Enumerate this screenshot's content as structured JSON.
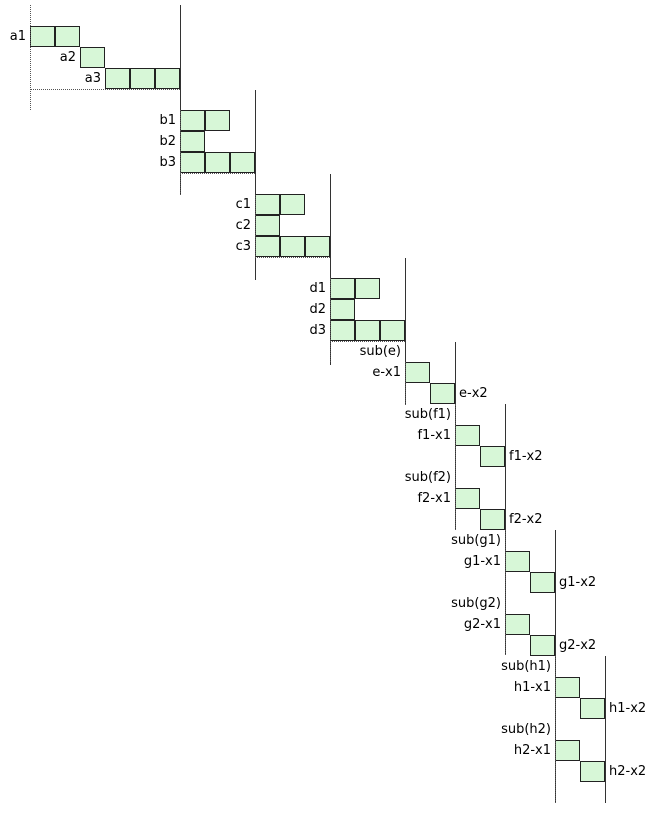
{
  "rows": [
    {
      "label": "a1",
      "cells": 2,
      "group": "a"
    },
    {
      "label": "a2",
      "cells": 1,
      "group": "a"
    },
    {
      "label": "a3",
      "cells": 3,
      "group": "a"
    },
    {
      "label": "b1",
      "cells": 2,
      "group": "b"
    },
    {
      "label": "b2",
      "cells": 1,
      "group": "b"
    },
    {
      "label": "b3",
      "cells": 3,
      "group": "b"
    },
    {
      "label": "c1",
      "cells": 2,
      "group": "c"
    },
    {
      "label": "c2",
      "cells": 1,
      "group": "c"
    },
    {
      "label": "c3",
      "cells": 3,
      "group": "c"
    },
    {
      "label": "d1",
      "cells": 2,
      "group": "d"
    },
    {
      "label": "d2",
      "cells": 1,
      "group": "d"
    },
    {
      "label": "d3",
      "cells": 3,
      "group": "d"
    },
    {
      "label": "sub(e)",
      "cells": 0,
      "group": "e"
    },
    {
      "label": "e-x1",
      "cells": 1,
      "group": "e"
    },
    {
      "label": "e-x2",
      "cells": 1,
      "group": "e"
    },
    {
      "label": "sub(f1)",
      "cells": 0,
      "group": "f"
    },
    {
      "label": "f1-x1",
      "cells": 1,
      "group": "f"
    },
    {
      "label": "f1-x2",
      "cells": 1,
      "group": "f"
    },
    {
      "label": "sub(f2)",
      "cells": 0,
      "group": "f"
    },
    {
      "label": "f2-x1",
      "cells": 1,
      "group": "f"
    },
    {
      "label": "f2-x2",
      "cells": 1,
      "group": "f"
    },
    {
      "label": "sub(g1)",
      "cells": 0,
      "group": "g"
    },
    {
      "label": "g1-x1",
      "cells": 1,
      "group": "g"
    },
    {
      "label": "g1-x2",
      "cells": 1,
      "group": "g"
    },
    {
      "label": "sub(g2)",
      "cells": 0,
      "group": "g"
    },
    {
      "label": "g2-x1",
      "cells": 1,
      "group": "g"
    },
    {
      "label": "g2-x2",
      "cells": 1,
      "group": "g"
    },
    {
      "label": "sub(h1)",
      "cells": 0,
      "group": "h"
    },
    {
      "label": "h1-x1",
      "cells": 1,
      "group": "h"
    },
    {
      "label": "h1-x2",
      "cells": 1,
      "group": "h"
    },
    {
      "label": "sub(h2)",
      "cells": 0,
      "group": "h"
    },
    {
      "label": "h2-x1",
      "cells": 1,
      "group": "h"
    },
    {
      "label": "h2-x2",
      "cells": 1,
      "group": "h"
    }
  ],
  "colors": {
    "cell_fill": "#d7f7d7",
    "cell_border": "#222222",
    "line": "#333333"
  }
}
